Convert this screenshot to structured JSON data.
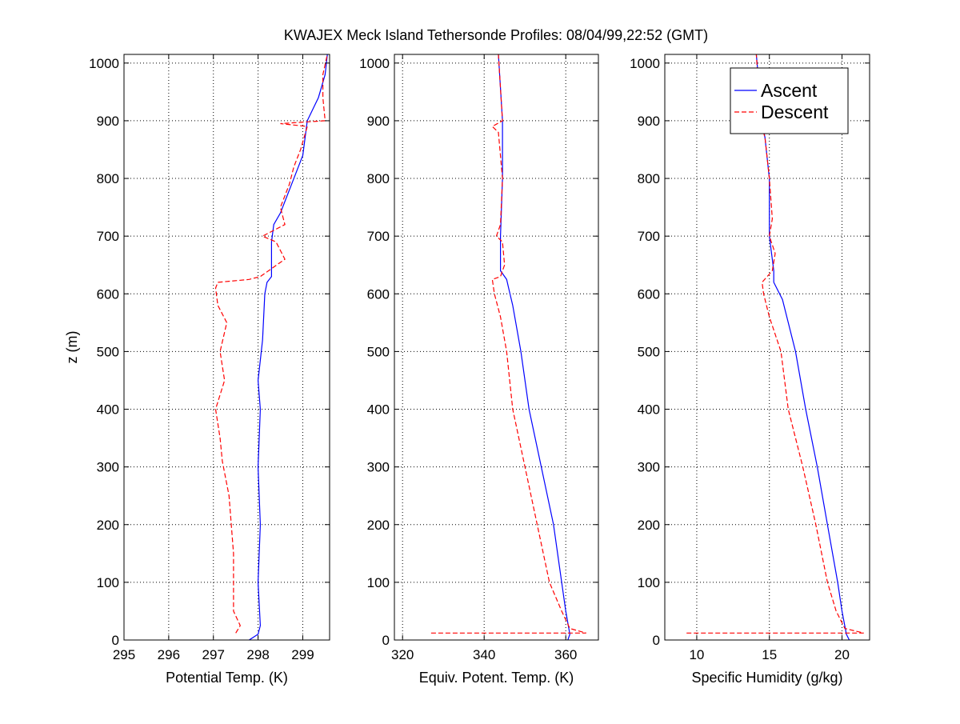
{
  "title": "KWAJEX Meck Island Tethersonde Profiles: 08/04/99,22:52 (GMT)",
  "colors": {
    "ascent": "#0000ff",
    "descent": "#ff0000",
    "axes": "#000000",
    "grid": "#000000"
  },
  "chart_data": [
    {
      "type": "line",
      "xlabel": "Potential Temp. (K)",
      "ylabel": "z (m)",
      "xlim": [
        295,
        299.6
      ],
      "ylim": [
        0,
        1015
      ],
      "xticks": [
        295,
        296,
        297,
        298,
        299
      ],
      "yticks": [
        0,
        100,
        200,
        300,
        400,
        500,
        600,
        700,
        800,
        900,
        1000
      ],
      "grid": true,
      "series": [
        {
          "name": "Ascent",
          "style": "solid",
          "color": "#0000ff",
          "points": [
            [
              297.8,
              0
            ],
            [
              298.0,
              10
            ],
            [
              298.05,
              25
            ],
            [
              298.0,
              100
            ],
            [
              298.05,
              200
            ],
            [
              298.0,
              300
            ],
            [
              298.05,
              400
            ],
            [
              298.0,
              450
            ],
            [
              298.1,
              520
            ],
            [
              298.15,
              600
            ],
            [
              298.2,
              620
            ],
            [
              298.3,
              630
            ],
            [
              298.3,
              690
            ],
            [
              298.35,
              720
            ],
            [
              298.5,
              740
            ],
            [
              298.6,
              760
            ],
            [
              298.75,
              790
            ],
            [
              299.0,
              840
            ],
            [
              299.05,
              870
            ],
            [
              299.1,
              900
            ],
            [
              299.35,
              940
            ],
            [
              299.5,
              980
            ],
            [
              299.55,
              1015
            ]
          ]
        },
        {
          "name": "Descent",
          "style": "dashed",
          "color": "#ff0000",
          "points": [
            [
              297.5,
              12
            ],
            [
              297.6,
              25
            ],
            [
              297.45,
              50
            ],
            [
              297.45,
              150
            ],
            [
              297.35,
              250
            ],
            [
              297.2,
              310
            ],
            [
              297.15,
              350
            ],
            [
              297.05,
              400
            ],
            [
              297.25,
              450
            ],
            [
              297.15,
              500
            ],
            [
              297.3,
              550
            ],
            [
              297.1,
              580
            ],
            [
              297.05,
              610
            ],
            [
              297.1,
              620
            ],
            [
              297.8,
              625
            ],
            [
              298.05,
              630
            ],
            [
              298.6,
              660
            ],
            [
              298.4,
              690
            ],
            [
              298.1,
              700
            ],
            [
              298.6,
              720
            ],
            [
              298.5,
              750
            ],
            [
              298.7,
              790
            ],
            [
              298.8,
              820
            ],
            [
              298.95,
              850
            ],
            [
              299.1,
              890
            ],
            [
              298.5,
              895
            ],
            [
              299.5,
              900
            ],
            [
              299.45,
              940
            ],
            [
              299.45,
              980
            ],
            [
              299.55,
              1015
            ]
          ]
        }
      ]
    },
    {
      "type": "line",
      "xlabel": "Equiv. Potent. Temp. (K)",
      "ylabel": "",
      "xlim": [
        318,
        368
      ],
      "ylim": [
        0,
        1015
      ],
      "xticks": [
        320,
        340,
        360
      ],
      "yticks": [
        0,
        100,
        200,
        300,
        400,
        500,
        600,
        700,
        800,
        900,
        1000
      ],
      "grid": true,
      "series": [
        {
          "name": "Ascent",
          "style": "solid",
          "color": "#0000ff",
          "points": [
            [
              360.5,
              0
            ],
            [
              361,
              10
            ],
            [
              360,
              50
            ],
            [
              359,
              100
            ],
            [
              357,
              200
            ],
            [
              354,
              300
            ],
            [
              351,
              400
            ],
            [
              349,
              500
            ],
            [
              347,
              580
            ],
            [
              346,
              610
            ],
            [
              345.5,
              625
            ],
            [
              344,
              640
            ],
            [
              344,
              700
            ],
            [
              344.5,
              800
            ],
            [
              344.5,
              900
            ],
            [
              343.5,
              1015
            ]
          ]
        },
        {
          "name": "Descent",
          "style": "dashed",
          "color": "#ff0000",
          "points": [
            [
              327,
              12
            ],
            [
              365,
              12
            ],
            [
              361,
              20
            ],
            [
              359,
              50
            ],
            [
              356,
              100
            ],
            [
              353,
              200
            ],
            [
              350,
              300
            ],
            [
              347,
              400
            ],
            [
              345.5,
              500
            ],
            [
              344,
              560
            ],
            [
              342.5,
              600
            ],
            [
              342,
              625
            ],
            [
              344,
              630
            ],
            [
              345,
              650
            ],
            [
              344.5,
              690
            ],
            [
              343,
              700
            ],
            [
              344,
              720
            ],
            [
              344.5,
              800
            ],
            [
              343.5,
              880
            ],
            [
              342,
              890
            ],
            [
              344.5,
              900
            ],
            [
              343.5,
              1015
            ]
          ]
        }
      ]
    },
    {
      "type": "line",
      "xlabel": "Specific Humidity (g/kg)",
      "ylabel": "",
      "xlim": [
        7.8,
        21.9
      ],
      "ylim": [
        0,
        1015
      ],
      "xticks": [
        10,
        15,
        20
      ],
      "yticks": [
        0,
        100,
        200,
        300,
        400,
        500,
        600,
        700,
        800,
        900,
        1000
      ],
      "grid": true,
      "legend": {
        "position": "top-right",
        "entries": [
          "Ascent",
          "Descent"
        ]
      },
      "series": [
        {
          "name": "Ascent",
          "style": "solid",
          "color": "#0000ff",
          "points": [
            [
              20.5,
              0
            ],
            [
              20.3,
              10
            ],
            [
              20.0,
              50
            ],
            [
              19.7,
              100
            ],
            [
              19.0,
              200
            ],
            [
              18.3,
              300
            ],
            [
              17.5,
              400
            ],
            [
              16.8,
              500
            ],
            [
              15.9,
              590
            ],
            [
              15.3,
              620
            ],
            [
              15.3,
              640
            ],
            [
              15.0,
              700
            ],
            [
              15.0,
              800
            ],
            [
              14.7,
              870
            ],
            [
              14.5,
              900
            ],
            [
              14.1,
              1015
            ]
          ]
        },
        {
          "name": "Descent",
          "style": "dashed",
          "color": "#ff0000",
          "points": [
            [
              9.3,
              12
            ],
            [
              21.5,
              12
            ],
            [
              20.2,
              20
            ],
            [
              19.6,
              50
            ],
            [
              19.0,
              100
            ],
            [
              18.2,
              200
            ],
            [
              17.3,
              300
            ],
            [
              16.3,
              400
            ],
            [
              15.8,
              500
            ],
            [
              15.0,
              560
            ],
            [
              14.6,
              600
            ],
            [
              14.5,
              620
            ],
            [
              15.2,
              640
            ],
            [
              15.4,
              670
            ],
            [
              15.0,
              700
            ],
            [
              15.2,
              730
            ],
            [
              15.0,
              800
            ],
            [
              14.7,
              870
            ],
            [
              14.4,
              900
            ],
            [
              14.1,
              1015
            ]
          ]
        }
      ]
    }
  ]
}
